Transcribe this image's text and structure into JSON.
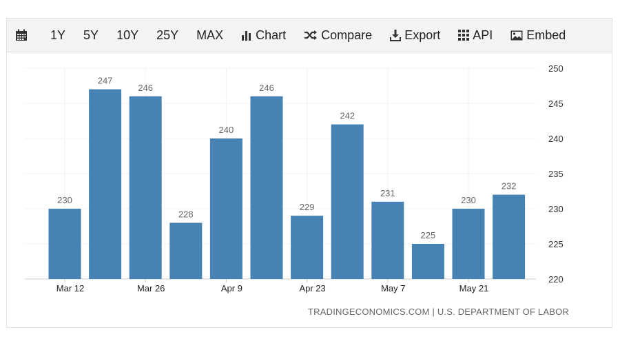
{
  "toolbar": {
    "items": [
      {
        "label": "",
        "icon": "calendar-icon"
      },
      {
        "label": "1Y"
      },
      {
        "label": "5Y"
      },
      {
        "label": "10Y"
      },
      {
        "label": "25Y"
      },
      {
        "label": "MAX"
      },
      {
        "label": "Chart",
        "icon": "bar-chart-icon"
      },
      {
        "label": "Compare",
        "icon": "shuffle-icon"
      },
      {
        "label": "Export",
        "icon": "download-icon"
      },
      {
        "label": "API",
        "icon": "grid-icon"
      },
      {
        "label": "Embed",
        "icon": "image-icon"
      }
    ]
  },
  "source": "TRADINGECONOMICS.COM | U.S. DEPARTMENT OF LABOR",
  "colors": {
    "bar": "#4682b4",
    "grid": "#e6e6e6",
    "toolbar_bg": "#f4f4f4"
  },
  "chart_data": {
    "type": "bar",
    "x_tick_labels": [
      "Mar 12",
      "Mar 26",
      "Apr 9",
      "Apr 23",
      "May 7",
      "May 21"
    ],
    "x_tick_at_bar": [
      0,
      2,
      4,
      6,
      8,
      10
    ],
    "values": [
      230,
      247,
      246,
      228,
      240,
      246,
      229,
      242,
      231,
      225,
      230,
      232
    ],
    "ylim": [
      220,
      250
    ],
    "yticks": [
      220,
      225,
      230,
      235,
      240,
      245,
      250
    ],
    "y_axis_side": "right",
    "grid": true,
    "data_labels": true
  }
}
